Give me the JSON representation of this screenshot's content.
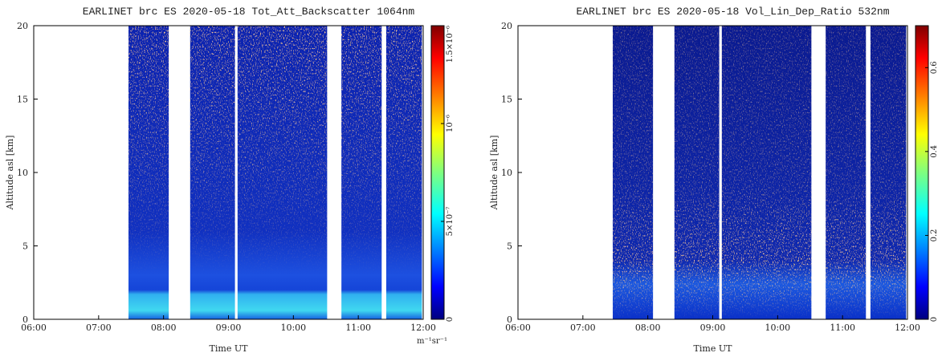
{
  "chart_data": [
    {
      "type": "heatmap",
      "title": "EARLINET brc ES 2020-05-18 Tot_Att_Backscatter 1064nm",
      "xlabel": "Time UT",
      "ylabel": "Altitude asl [km]",
      "colorbar_label": "m⁻¹sr⁻¹",
      "xlim": [
        6,
        12
      ],
      "xticks": [
        {
          "value": 6,
          "label": "06:00"
        },
        {
          "value": 7,
          "label": "07:00"
        },
        {
          "value": 8,
          "label": "08:00"
        },
        {
          "value": 9,
          "label": "09:00"
        },
        {
          "value": 10,
          "label": "10:00"
        },
        {
          "value": 11,
          "label": "11:00"
        },
        {
          "value": 12,
          "label": "12:00"
        }
      ],
      "ylim": [
        0,
        20
      ],
      "yticks": [
        0,
        5,
        10,
        15,
        20
      ],
      "clim": [
        0,
        1.5e-06
      ],
      "cticks": [
        0,
        {
          "value": 5e-07,
          "label": "5×10⁻⁷"
        },
        {
          "value": 1e-06,
          "label": "10⁻⁶"
        },
        {
          "value": 1.5e-06,
          "label": "1.5×10⁻⁶"
        }
      ],
      "segments": [
        [
          7.46,
          8.08
        ],
        [
          8.41,
          9.1
        ],
        [
          9.14,
          10.52
        ],
        [
          10.74,
          11.36
        ],
        [
          11.43,
          11.98
        ]
      ]
    },
    {
      "type": "heatmap",
      "title": "EARLINET brc ES 2020-05-18 Vol_Lin_Dep_Ratio 532nm",
      "xlabel": "Time UT",
      "ylabel": "Altitude asl [km]",
      "xlim": [
        6,
        12
      ],
      "xticks": [
        {
          "value": 6,
          "label": "06:00"
        },
        {
          "value": 7,
          "label": "07:00"
        },
        {
          "value": 8,
          "label": "08:00"
        },
        {
          "value": 9,
          "label": "09:00"
        },
        {
          "value": 10,
          "label": "10:00"
        },
        {
          "value": 11,
          "label": "11:00"
        },
        {
          "value": 12,
          "label": "12:00"
        }
      ],
      "ylim": [
        0,
        20
      ],
      "yticks": [
        0,
        5,
        10,
        15,
        20
      ],
      "clim": [
        0,
        0.7
      ],
      "cticks": [
        0,
        0.2,
        0.4,
        0.6
      ],
      "segments": [
        [
          7.46,
          8.08
        ],
        [
          8.41,
          9.1
        ],
        [
          9.14,
          10.52
        ],
        [
          10.74,
          11.36
        ],
        [
          11.43,
          11.98
        ]
      ]
    }
  ]
}
